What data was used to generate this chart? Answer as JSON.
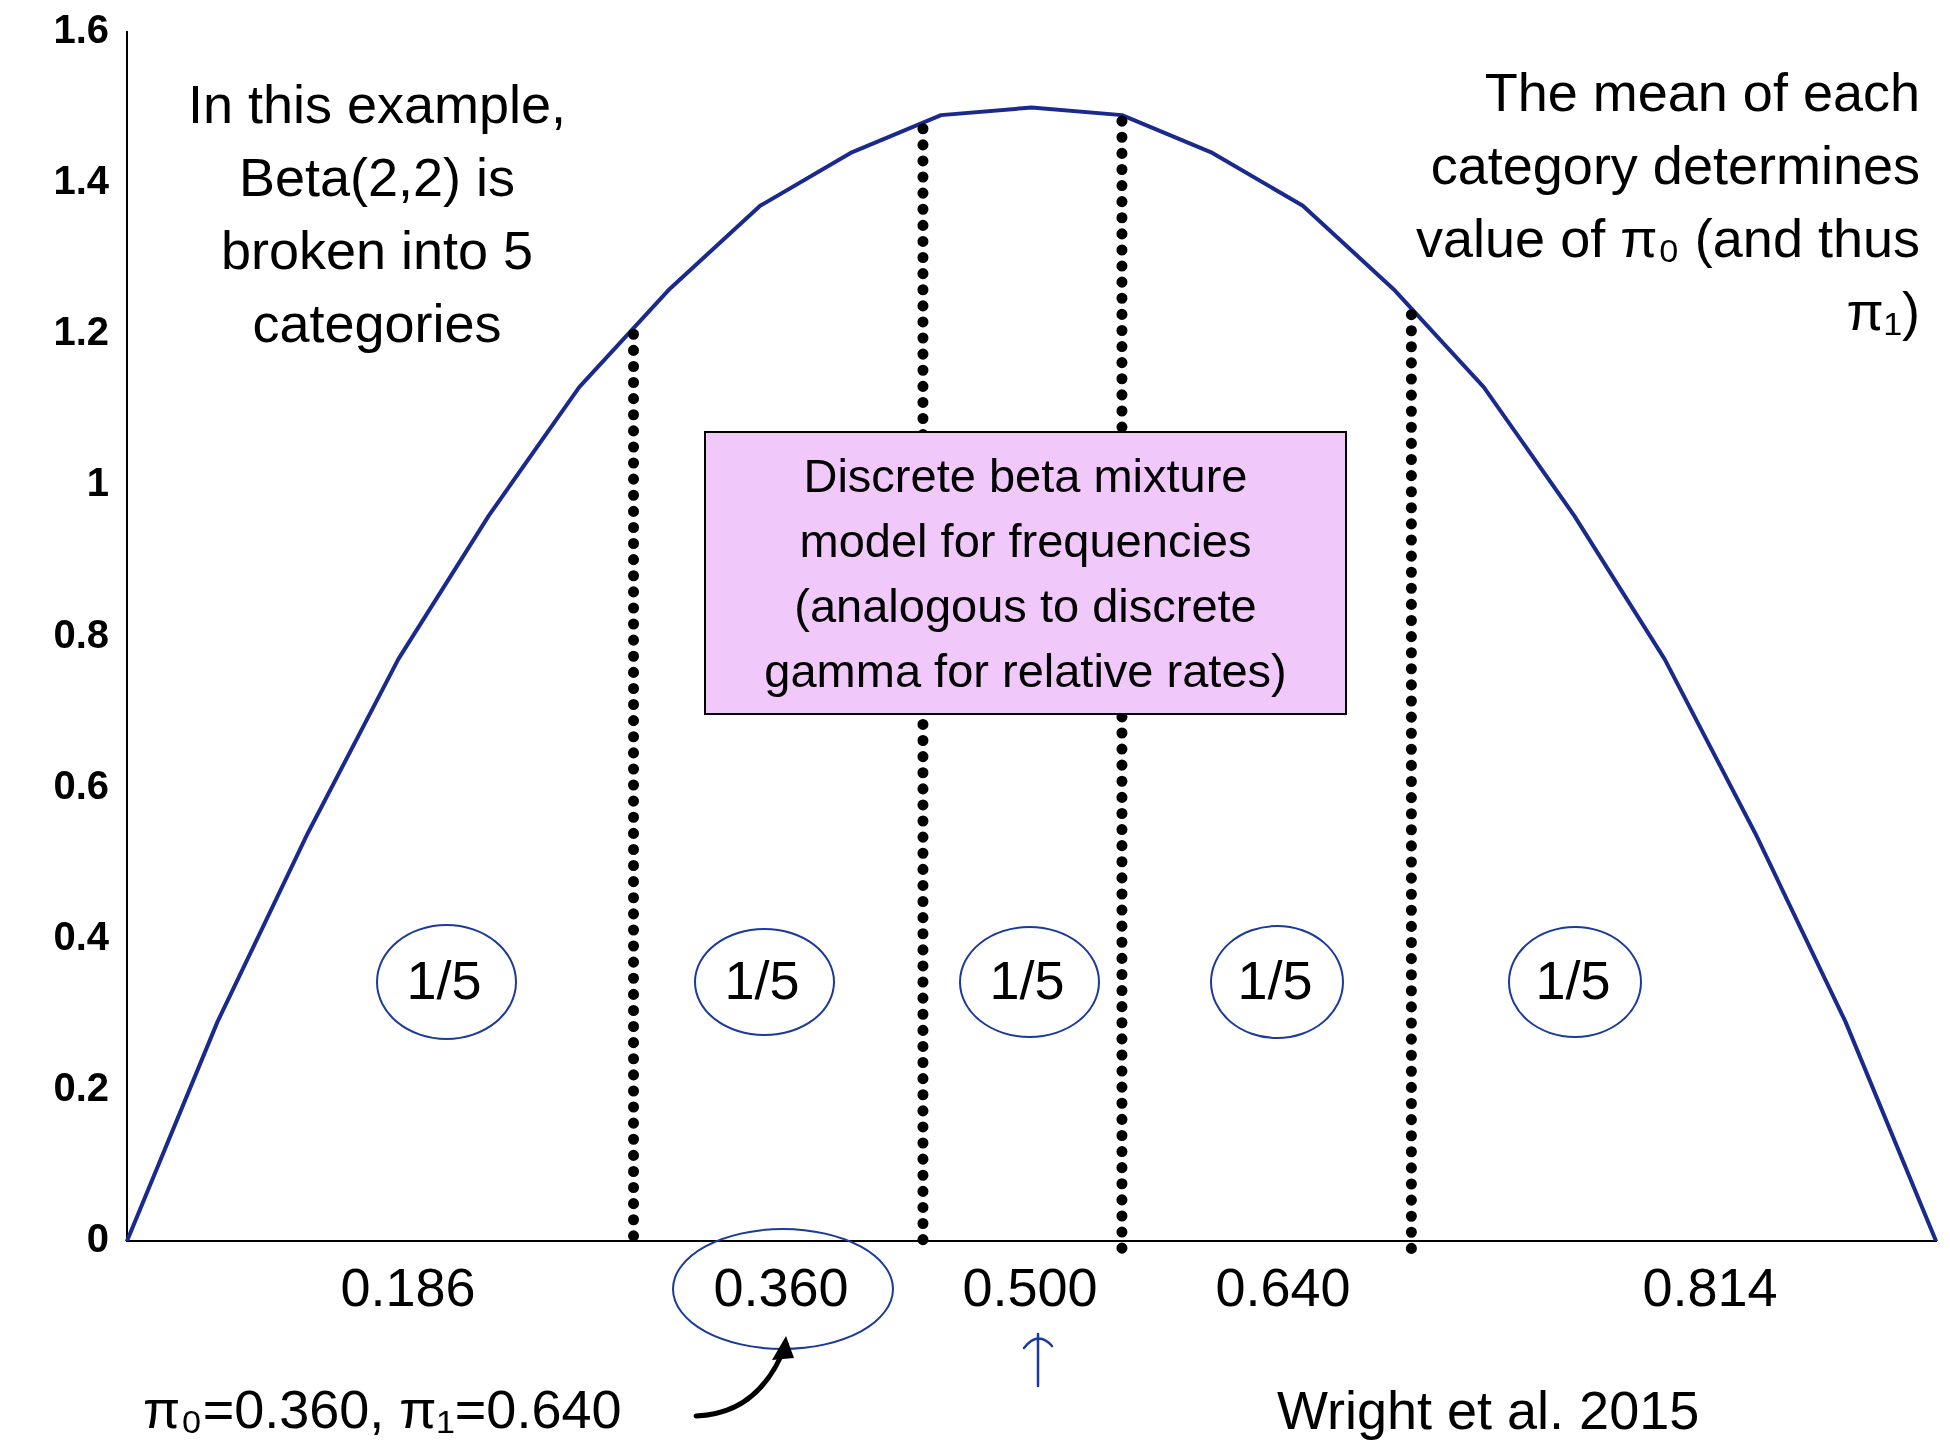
{
  "chart_data": {
    "type": "line",
    "categories": [
      null,
      null,
      null,
      null,
      null,
      null,
      null,
      null,
      null,
      null,
      null,
      null,
      null,
      null,
      null,
      null,
      null,
      null,
      null,
      null,
      null
    ],
    "series": [
      {
        "color": "#1a2a8c",
        "values": [
          0,
          0.29,
          0.54,
          0.77,
          0.96,
          1.13,
          1.26,
          1.37,
          1.44,
          1.49,
          1.5,
          1.49,
          1.44,
          1.37,
          1.26,
          1.13,
          0.96,
          0.77,
          0.54,
          0.29,
          0
        ]
      }
    ],
    "ylim": [
      0,
      1.6
    ],
    "yticks": [
      0,
      0.2,
      0.4,
      0.6,
      0.8,
      1,
      1.2,
      1.4,
      1.6
    ],
    "tick_labels": "y",
    "grid": false,
    "legend": false,
    "marker": "none",
    "line_style": "solid",
    "annotations": [
      "In this example, Beta(2,2) is broken into 5 categories",
      "The mean of each category determines value of π₀ (and thus π₁)",
      "Discrete beta mixture model for frequencies (analogous to discrete gamma for relative rates)",
      "1/5",
      "1/5",
      "1/5",
      "1/5",
      "1/5",
      "0.186",
      "0.360",
      "0.500",
      "0.640",
      "0.814",
      "π₀=0.360, π₁=0.640",
      "Wright et al. 2015"
    ]
  }
}
